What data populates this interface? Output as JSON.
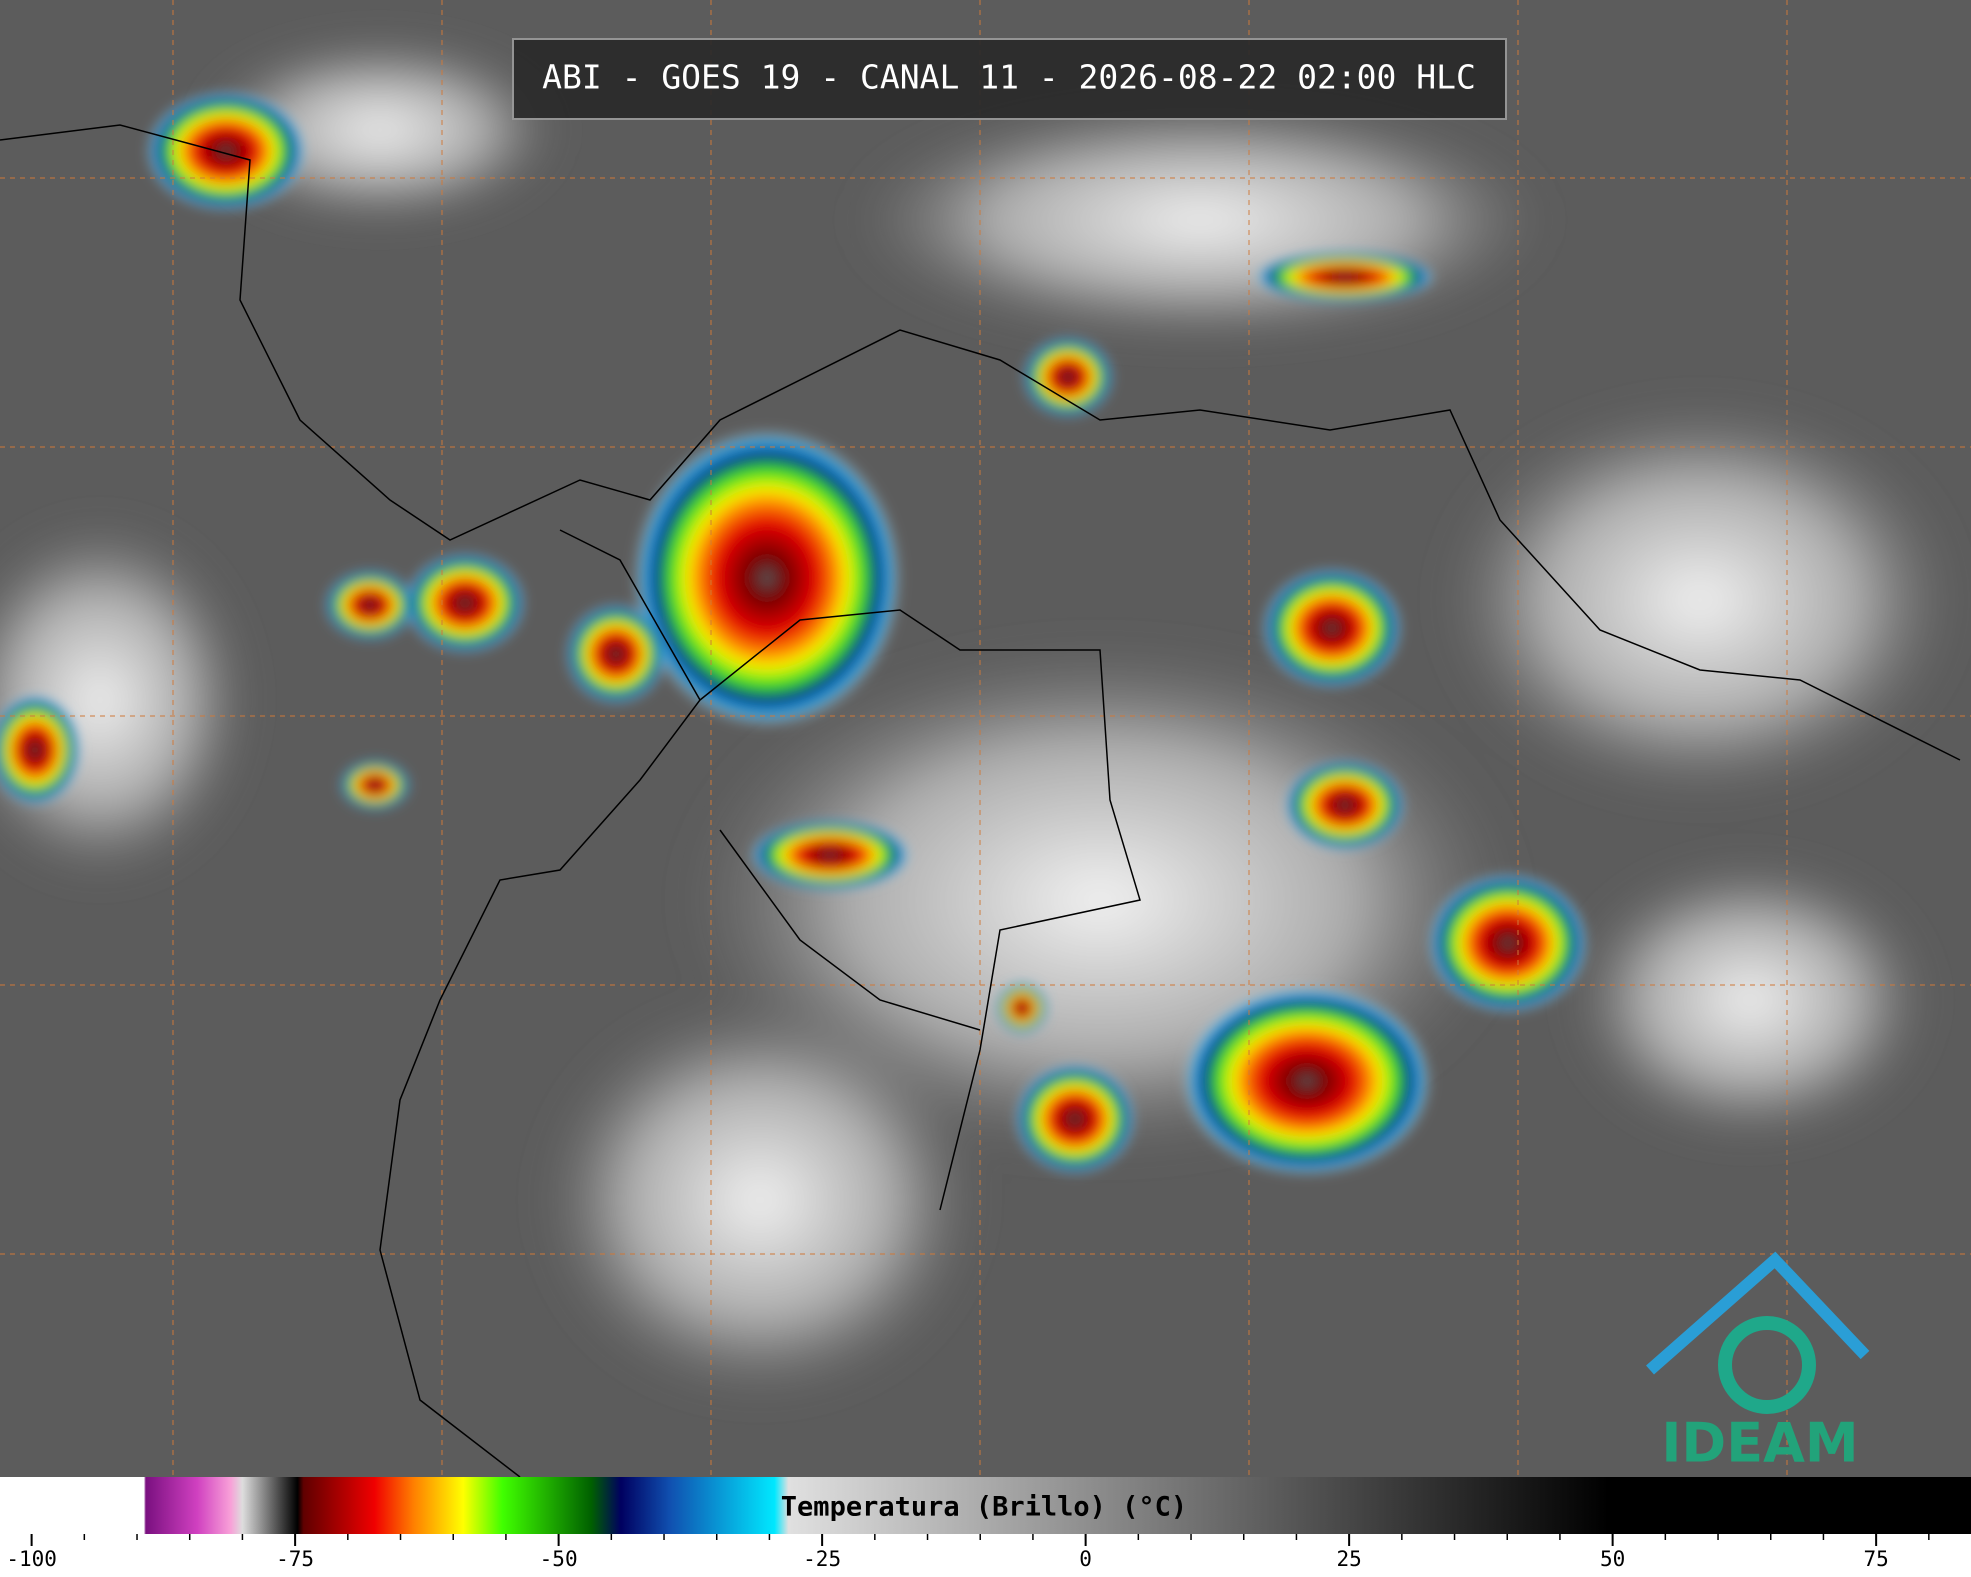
{
  "title": "ABI - GOES 19 - CANAL 11 - 2026-08-22 02:00 HLC",
  "colorbar": {
    "label": "Temperatura (Brillo) (°C)",
    "lim": [
      -103,
      84
    ],
    "ticks": [
      -100,
      -75,
      -50,
      -25,
      0,
      25,
      50,
      75
    ],
    "minor_tick_step": 5
  },
  "logo": "IDEAM"
}
